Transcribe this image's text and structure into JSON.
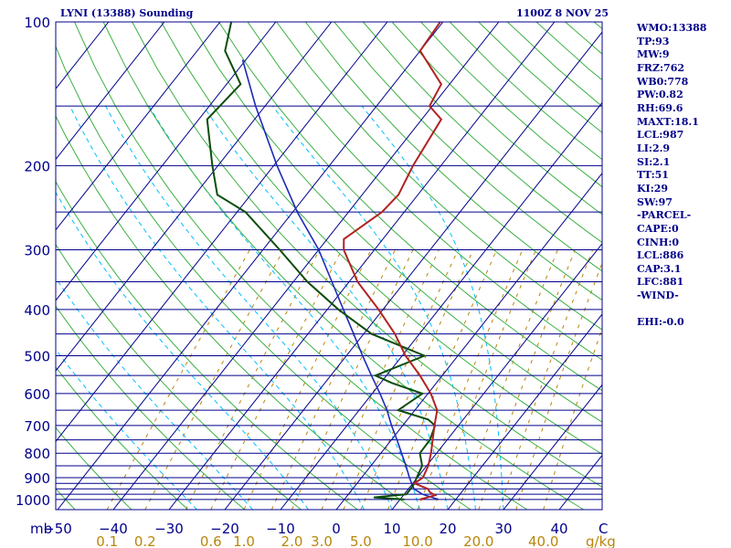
{
  "header": {
    "title": "LYNI (13388) Sounding",
    "valid_time": "1100Z  8 NOV 25"
  },
  "stats": [
    "WMO:13388",
    "TP:93",
    "MW:9",
    "FRZ:762",
    "WB0:778",
    "PW:0.82",
    "RH:69.6",
    "MAXT:18.1",
    "LCL:987",
    "LI:2.9",
    "SI:2.1",
    "TT:51",
    "KI:29",
    "SW:97",
    "-PARCEL-",
    "CAPE:0",
    "CINH:0",
    "LCL:886",
    "CAP:3.1",
    "LFC:881",
    "-WIND-",
    "",
    "EHI:-0.0"
  ],
  "colors": {
    "frame": "#00008b",
    "isobar": "#00008b",
    "isotherm": "#00008b",
    "dry_adiabat": "#3cb043",
    "moist_adiabat": "#00bfff",
    "mixing_ratio": "#b8860b",
    "temperature": "#b22222",
    "dewpoint": "#0a4d0a",
    "parcel": "#1e2ab8",
    "mixing_ratio_label": "#b8860b",
    "axis_label": "#00008b"
  },
  "chart_data": {
    "type": "skew-t",
    "pressure_unit": "mb",
    "mixing_ratio_unit": "g/kg",
    "pressure_ticks": [
      100,
      200,
      300,
      400,
      500,
      600,
      700,
      800,
      900,
      1000
    ],
    "isobars_drawn": [
      100,
      150,
      200,
      250,
      300,
      350,
      400,
      450,
      500,
      550,
      600,
      650,
      700,
      750,
      800,
      850,
      900,
      925,
      950,
      975,
      1000
    ],
    "temperature_ticks": [
      -50,
      -40,
      -30,
      -20,
      -10,
      0,
      10,
      20,
      30,
      40
    ],
    "temperature_tick_labels": [
      "−50",
      "−40",
      "−30",
      "−20",
      "−10",
      "0",
      "10",
      "20",
      "30",
      "40"
    ],
    "temperature_axis_end_label": "C",
    "mixing_ratio_lines": [
      0.1,
      0.2,
      0.6,
      1.0,
      2.0,
      3.0,
      5.0,
      10.0,
      20.0,
      40.0
    ],
    "mixing_ratio_labels": [
      "0.1",
      "0.2",
      "0.6",
      "1.0",
      "2.0",
      "3.0",
      "5.0",
      "10.0",
      "20.0",
      "40.0"
    ],
    "temperature_profile": [
      {
        "p": 1000,
        "t": 13.6
      },
      {
        "p": 980,
        "t": 15.7
      },
      {
        "p": 965,
        "t": 14.3
      },
      {
        "p": 950,
        "t": 13.5
      },
      {
        "p": 925,
        "t": 10.3
      },
      {
        "p": 900,
        "t": 11.0
      },
      {
        "p": 850,
        "t": 10.3
      },
      {
        "p": 800,
        "t": 9.0
      },
      {
        "p": 750,
        "t": 7.4
      },
      {
        "p": 700,
        "t": 5.7
      },
      {
        "p": 650,
        "t": 4.0
      },
      {
        "p": 600,
        "t": 0.5
      },
      {
        "p": 550,
        "t": -4.0
      },
      {
        "p": 500,
        "t": -9.4
      },
      {
        "p": 450,
        "t": -14.4
      },
      {
        "p": 400,
        "t": -20.8
      },
      {
        "p": 350,
        "t": -28.5
      },
      {
        "p": 300,
        "t": -35.5
      },
      {
        "p": 285,
        "t": -37.0
      },
      {
        "p": 250,
        "t": -34.0
      },
      {
        "p": 230,
        "t": -33.5
      },
      {
        "p": 200,
        "t": -35.0
      },
      {
        "p": 160,
        "t": -36.5
      },
      {
        "p": 150,
        "t": -40.5
      },
      {
        "p": 135,
        "t": -41.5
      },
      {
        "p": 115,
        "t": -50.0
      },
      {
        "p": 100,
        "t": -50.5
      }
    ],
    "dewpoint_profile": [
      {
        "p": 1000,
        "t": 10.8
      },
      {
        "p": 990,
        "t": 5.0
      },
      {
        "p": 975,
        "t": 10.4
      },
      {
        "p": 950,
        "t": 10.4
      },
      {
        "p": 925,
        "t": 10.3
      },
      {
        "p": 900,
        "t": 9.9
      },
      {
        "p": 850,
        "t": 9.2
      },
      {
        "p": 800,
        "t": 7.0
      },
      {
        "p": 750,
        "t": 6.9
      },
      {
        "p": 700,
        "t": 5.8
      },
      {
        "p": 680,
        "t": 3.7
      },
      {
        "p": 650,
        "t": -3.0
      },
      {
        "p": 600,
        "t": -1.0
      },
      {
        "p": 570,
        "t": -8.0
      },
      {
        "p": 550,
        "t": -12.0
      },
      {
        "p": 500,
        "t": -6.0
      },
      {
        "p": 450,
        "t": -18.6
      },
      {
        "p": 400,
        "t": -28.0
      },
      {
        "p": 350,
        "t": -37.5
      },
      {
        "p": 300,
        "t": -47.0
      },
      {
        "p": 250,
        "t": -58.5
      },
      {
        "p": 230,
        "t": -66.0
      },
      {
        "p": 200,
        "t": -71.0
      },
      {
        "p": 160,
        "t": -78.5
      },
      {
        "p": 135,
        "t": -77.5
      },
      {
        "p": 115,
        "t": -85.0
      },
      {
        "p": 100,
        "t": -88.0
      }
    ],
    "parcel_profile": [
      {
        "p": 1000,
        "t": 16.9
      },
      {
        "p": 975,
        "t": 13.3
      },
      {
        "p": 950,
        "t": 11.0
      },
      {
        "p": 925,
        "t": 9.8
      },
      {
        "p": 900,
        "t": 8.6
      },
      {
        "p": 850,
        "t": 6.3
      },
      {
        "p": 800,
        "t": 3.7
      },
      {
        "p": 750,
        "t": 1.0
      },
      {
        "p": 700,
        "t": -2.0
      },
      {
        "p": 650,
        "t": -5.0
      },
      {
        "p": 600,
        "t": -8.6
      },
      {
        "p": 550,
        "t": -12.7
      },
      {
        "p": 500,
        "t": -17.1
      },
      {
        "p": 450,
        "t": -21.8
      },
      {
        "p": 400,
        "t": -27.1
      },
      {
        "p": 350,
        "t": -33.1
      },
      {
        "p": 300,
        "t": -40.0
      },
      {
        "p": 250,
        "t": -49.2
      },
      {
        "p": 200,
        "t": -59.4
      },
      {
        "p": 150,
        "t": -71.7
      },
      {
        "p": 120,
        "t": -80.6
      }
    ]
  }
}
